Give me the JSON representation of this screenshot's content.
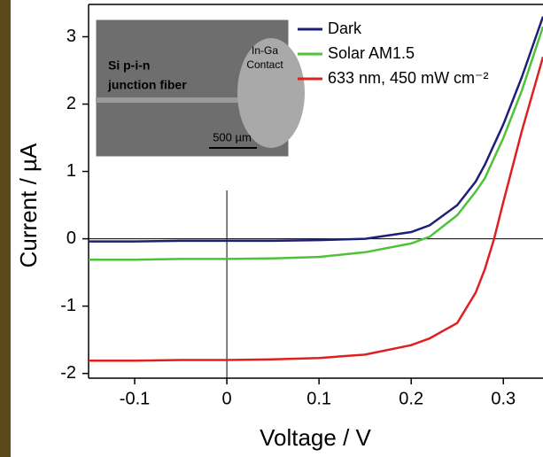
{
  "chart_data": {
    "type": "line",
    "xlabel": "Voltage / V",
    "ylabel": "Current / µA",
    "x": [
      -0.15,
      -0.1,
      -0.05,
      0.0,
      0.05,
      0.1,
      0.15,
      0.2,
      0.22,
      0.25,
      0.27,
      0.28,
      0.29,
      0.3,
      0.32,
      0.343
    ],
    "series": [
      {
        "name": "Dark",
        "color": "#1f1f7a",
        "values": [
          -0.04,
          -0.04,
          -0.03,
          -0.03,
          -0.03,
          -0.02,
          0.0,
          0.1,
          0.2,
          0.5,
          0.85,
          1.1,
          1.4,
          1.7,
          2.4,
          3.3
        ]
      },
      {
        "name": "Solar AM1.5",
        "color": "#4fc23a",
        "values": [
          -0.31,
          -0.31,
          -0.3,
          -0.3,
          -0.29,
          -0.27,
          -0.2,
          -0.07,
          0.03,
          0.35,
          0.7,
          0.9,
          1.2,
          1.5,
          2.2,
          3.15
        ]
      },
      {
        "name": "633 nm, 450 mW cm⁻²",
        "color": "#e02020",
        "values": [
          -1.81,
          -1.81,
          -1.8,
          -1.8,
          -1.79,
          -1.77,
          -1.72,
          -1.58,
          -1.48,
          -1.25,
          -0.8,
          -0.45,
          0.0,
          0.55,
          1.6,
          2.7
        ]
      }
    ],
    "xlim": [
      -0.15,
      0.343
    ],
    "xticks": [
      -0.1,
      0.0,
      0.1,
      0.2,
      0.3
    ],
    "ylim": [
      -2.07,
      3.48
    ],
    "yticks": [
      -2,
      -1,
      0,
      1,
      2,
      3
    ],
    "legend": "upper right",
    "inset": {
      "label": "Si p-i-n",
      "label2": "junction fiber",
      "contact": "In-Ga",
      "contact2": "Contact",
      "scale": "500 µm"
    }
  }
}
